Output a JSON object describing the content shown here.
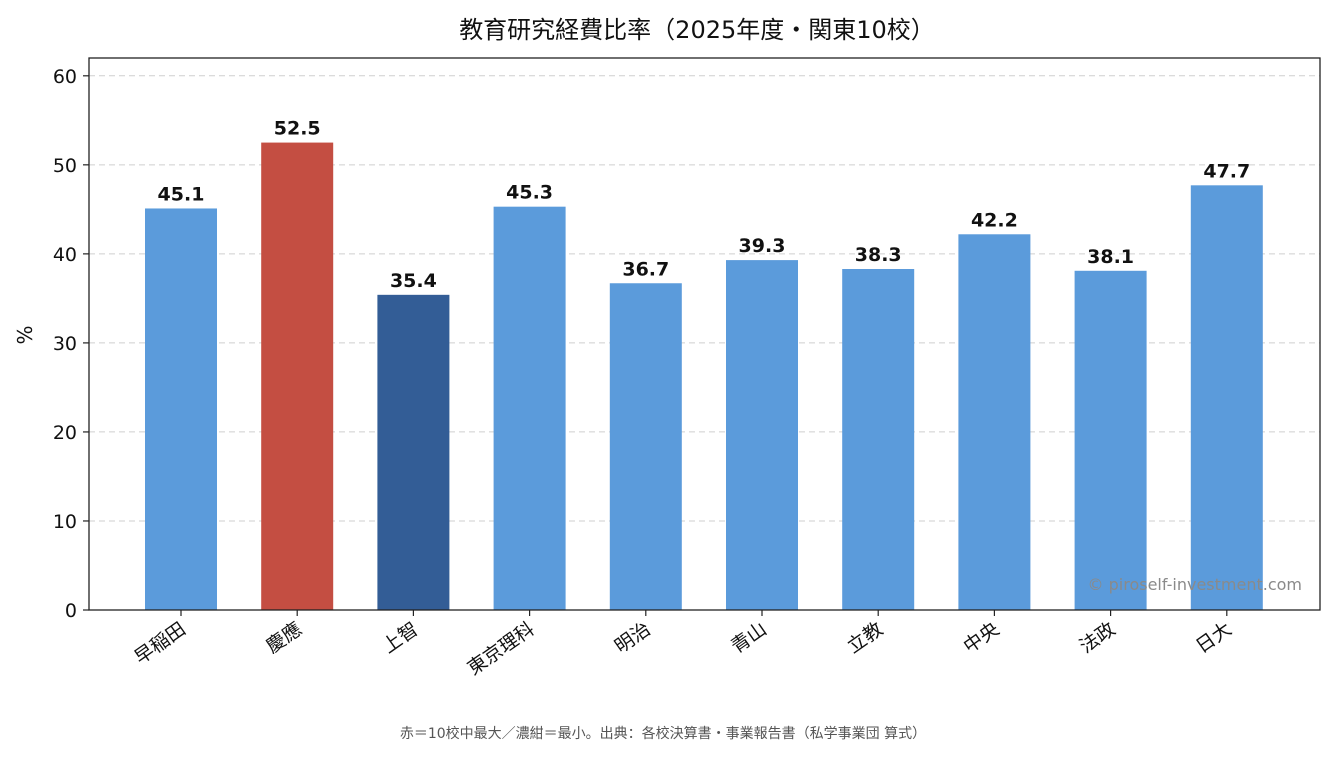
{
  "chart_data": {
    "type": "bar",
    "title": "教育研究経費比率（2025年度・関東10校）",
    "xlabel": "",
    "ylabel": "%",
    "ylim": [
      0,
      62
    ],
    "yticks": [
      0,
      10,
      20,
      30,
      40,
      50,
      60
    ],
    "grid": "horizontal-dashed",
    "categories": [
      "早稲田",
      "慶應",
      "上智",
      "東京理科",
      "明治",
      "青山",
      "立教",
      "中央",
      "法政",
      "日大"
    ],
    "values": [
      45.1,
      52.5,
      35.4,
      45.3,
      36.7,
      39.3,
      38.3,
      42.2,
      38.1,
      47.7
    ],
    "value_labels": [
      "45.1",
      "52.5",
      "35.4",
      "45.3",
      "36.7",
      "39.3",
      "38.3",
      "42.2",
      "38.1",
      "47.7"
    ],
    "bar_colors": [
      "#5b9bdb",
      "#c44e42",
      "#335d96",
      "#5b9bdb",
      "#5b9bdb",
      "#5b9bdb",
      "#5b9bdb",
      "#5b9bdb",
      "#5b9bdb",
      "#5b9bdb"
    ],
    "watermark": "© piroself-investment.com",
    "footnote": "赤＝10校中最大／濃紺＝最小。出典：各校決算書・事業報告書（私学事業団 算式）"
  }
}
